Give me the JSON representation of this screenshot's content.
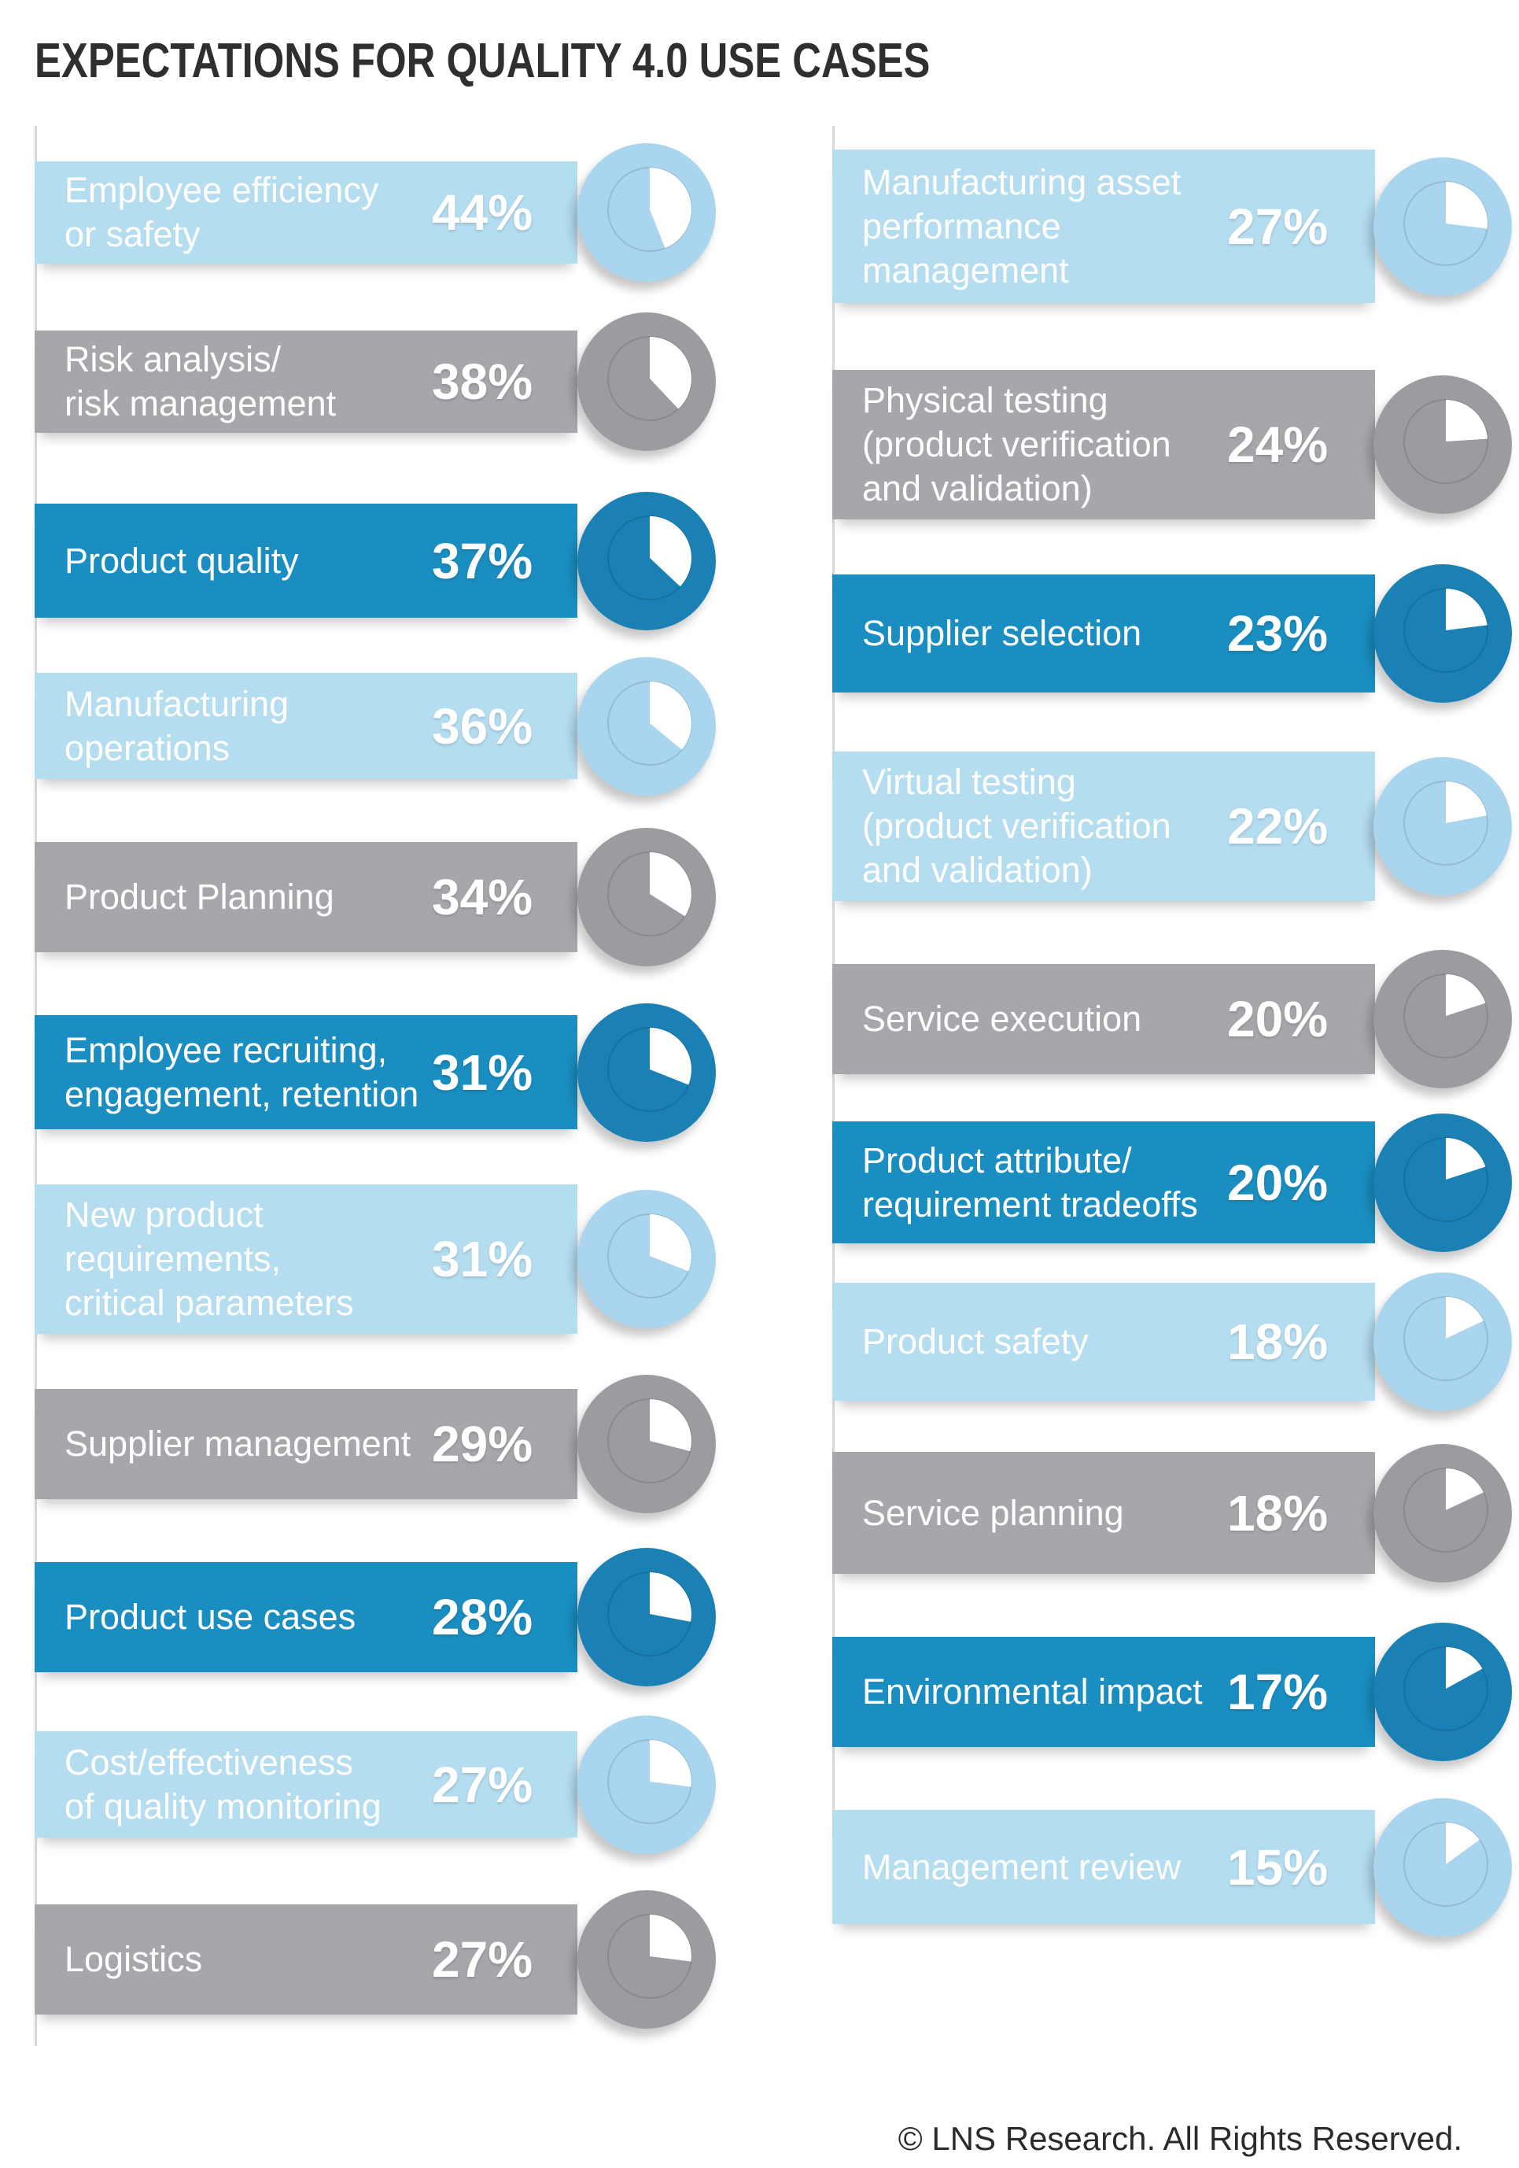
{
  "title": "EXPECTATIONS FOR QUALITY 4.0 USE CASES",
  "copyright": "© LNS Research. All Rights Reserved.",
  "colors": {
    "light": "#b4ddf0",
    "light_circle": "#a9d6ee",
    "gray": "#a6a7ab",
    "gray_circle": "#9b9ca0",
    "dark": "#1a8ec1",
    "dark_circle": "#1b80b3"
  },
  "chart_data": {
    "type": "pie",
    "unit": "%",
    "columns": [
      [
        {
          "label": "Employee efficiency\nor safety",
          "value": 44,
          "color": "light"
        },
        {
          "label": "Risk analysis/\nrisk management",
          "value": 38,
          "color": "gray"
        },
        {
          "label": "Product quality",
          "value": 37,
          "color": "dark"
        },
        {
          "label": "Manufacturing\noperations",
          "value": 36,
          "color": "light"
        },
        {
          "label": "Product Planning",
          "value": 34,
          "color": "gray"
        },
        {
          "label": "Employee recruiting,\nengagement, retention",
          "value": 31,
          "color": "dark"
        },
        {
          "label": "New product\nrequirements,\ncritical parameters",
          "value": 31,
          "color": "light"
        },
        {
          "label": "Supplier management",
          "value": 29,
          "color": "gray"
        },
        {
          "label": "Product use cases",
          "value": 28,
          "color": "dark"
        },
        {
          "label": "Cost/effectiveness\nof quality monitoring",
          "value": 27,
          "color": "light"
        },
        {
          "label": "Logistics",
          "value": 27,
          "color": "gray"
        }
      ],
      [
        {
          "label": "Manufacturing asset\nperformance\nmanagement",
          "value": 27,
          "color": "light"
        },
        {
          "label": "Physical testing\n(product verification\nand validation)",
          "value": 24,
          "color": "gray"
        },
        {
          "label": "Supplier selection",
          "value": 23,
          "color": "dark"
        },
        {
          "label": "Virtual testing\n(product verification\nand validation)",
          "value": 22,
          "color": "light"
        },
        {
          "label": "Service execution",
          "value": 20,
          "color": "gray"
        },
        {
          "label": "Product attribute/\nrequirement tradeoffs",
          "value": 20,
          "color": "dark"
        },
        {
          "label": "Product safety",
          "value": 18,
          "color": "light"
        },
        {
          "label": "Service planning",
          "value": 18,
          "color": "gray"
        },
        {
          "label": "Environmental impact",
          "value": 17,
          "color": "dark"
        },
        {
          "label": "Management review",
          "value": 15,
          "color": "light"
        }
      ]
    ]
  }
}
